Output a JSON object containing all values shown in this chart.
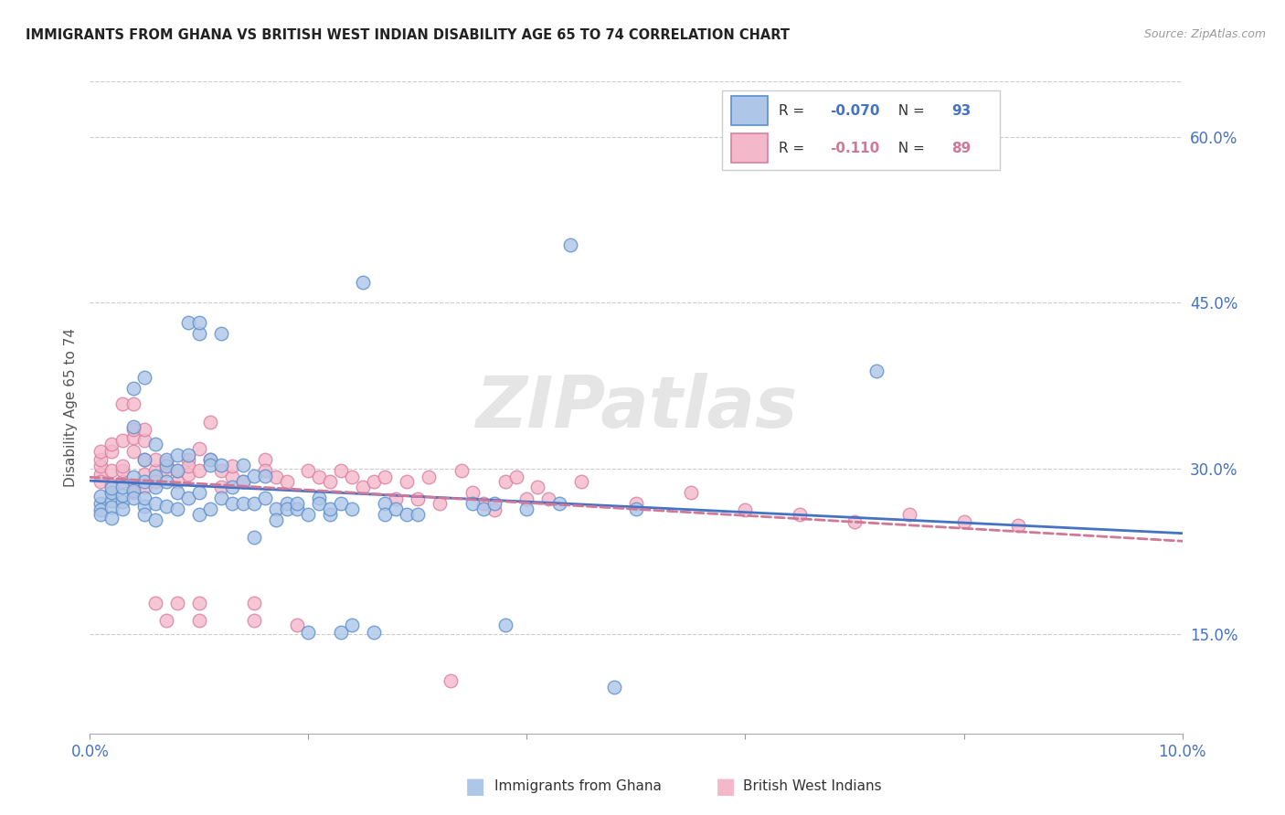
{
  "title": "IMMIGRANTS FROM GHANA VS BRITISH WEST INDIAN DISABILITY AGE 65 TO 74 CORRELATION CHART",
  "source": "Source: ZipAtlas.com",
  "ylabel": "Disability Age 65 to 74",
  "xlim": [
    0.0,
    0.1
  ],
  "ylim": [
    0.06,
    0.65
  ],
  "xtick_positions": [
    0.0,
    0.02,
    0.04,
    0.06,
    0.08,
    0.1
  ],
  "xticklabels": [
    "0.0%",
    "",
    "",
    "",
    "",
    "10.0%"
  ],
  "yticks": [
    0.15,
    0.3,
    0.45,
    0.6
  ],
  "yticklabels": [
    "15.0%",
    "30.0%",
    "45.0%",
    "60.0%"
  ],
  "ghana_R": -0.07,
  "ghana_N": 93,
  "bwi_R": -0.11,
  "bwi_N": 89,
  "ghana_color": "#aec6e8",
  "bwi_color": "#f4b8cb",
  "ghana_edge_color": "#5b8fcc",
  "bwi_edge_color": "#d97fa0",
  "ghana_line_color": "#4472c4",
  "bwi_line_color": "#d07898",
  "watermark": "ZIPatlas",
  "ghana_points": [
    [
      0.001,
      0.268
    ],
    [
      0.001,
      0.275
    ],
    [
      0.001,
      0.262
    ],
    [
      0.001,
      0.258
    ],
    [
      0.002,
      0.271
    ],
    [
      0.002,
      0.265
    ],
    [
      0.002,
      0.278
    ],
    [
      0.002,
      0.255
    ],
    [
      0.002,
      0.282
    ],
    [
      0.003,
      0.27
    ],
    [
      0.003,
      0.276
    ],
    [
      0.003,
      0.283
    ],
    [
      0.003,
      0.263
    ],
    [
      0.004,
      0.28
    ],
    [
      0.004,
      0.273
    ],
    [
      0.004,
      0.292
    ],
    [
      0.004,
      0.338
    ],
    [
      0.004,
      0.372
    ],
    [
      0.005,
      0.266
    ],
    [
      0.005,
      0.288
    ],
    [
      0.005,
      0.308
    ],
    [
      0.005,
      0.273
    ],
    [
      0.005,
      0.258
    ],
    [
      0.005,
      0.382
    ],
    [
      0.006,
      0.322
    ],
    [
      0.006,
      0.268
    ],
    [
      0.006,
      0.283
    ],
    [
      0.006,
      0.293
    ],
    [
      0.006,
      0.253
    ],
    [
      0.007,
      0.302
    ],
    [
      0.007,
      0.308
    ],
    [
      0.007,
      0.266
    ],
    [
      0.007,
      0.288
    ],
    [
      0.008,
      0.312
    ],
    [
      0.008,
      0.298
    ],
    [
      0.008,
      0.263
    ],
    [
      0.008,
      0.278
    ],
    [
      0.009,
      0.312
    ],
    [
      0.009,
      0.273
    ],
    [
      0.009,
      0.432
    ],
    [
      0.01,
      0.422
    ],
    [
      0.01,
      0.432
    ],
    [
      0.01,
      0.278
    ],
    [
      0.01,
      0.258
    ],
    [
      0.011,
      0.308
    ],
    [
      0.011,
      0.303
    ],
    [
      0.011,
      0.263
    ],
    [
      0.012,
      0.422
    ],
    [
      0.012,
      0.303
    ],
    [
      0.012,
      0.273
    ],
    [
      0.013,
      0.283
    ],
    [
      0.013,
      0.268
    ],
    [
      0.014,
      0.303
    ],
    [
      0.014,
      0.288
    ],
    [
      0.014,
      0.268
    ],
    [
      0.015,
      0.293
    ],
    [
      0.015,
      0.268
    ],
    [
      0.015,
      0.238
    ],
    [
      0.016,
      0.293
    ],
    [
      0.016,
      0.273
    ],
    [
      0.017,
      0.263
    ],
    [
      0.017,
      0.253
    ],
    [
      0.018,
      0.268
    ],
    [
      0.018,
      0.263
    ],
    [
      0.019,
      0.263
    ],
    [
      0.019,
      0.268
    ],
    [
      0.02,
      0.152
    ],
    [
      0.02,
      0.258
    ],
    [
      0.021,
      0.273
    ],
    [
      0.021,
      0.268
    ],
    [
      0.022,
      0.258
    ],
    [
      0.022,
      0.263
    ],
    [
      0.023,
      0.268
    ],
    [
      0.023,
      0.152
    ],
    [
      0.024,
      0.158
    ],
    [
      0.024,
      0.263
    ],
    [
      0.025,
      0.468
    ],
    [
      0.026,
      0.152
    ],
    [
      0.027,
      0.268
    ],
    [
      0.027,
      0.258
    ],
    [
      0.028,
      0.263
    ],
    [
      0.029,
      0.258
    ],
    [
      0.03,
      0.258
    ],
    [
      0.035,
      0.268
    ],
    [
      0.036,
      0.263
    ],
    [
      0.037,
      0.268
    ],
    [
      0.038,
      0.158
    ],
    [
      0.04,
      0.263
    ],
    [
      0.043,
      0.268
    ],
    [
      0.044,
      0.502
    ],
    [
      0.048,
      0.102
    ],
    [
      0.05,
      0.263
    ],
    [
      0.072,
      0.388
    ]
  ],
  "bwi_points": [
    [
      0.001,
      0.295
    ],
    [
      0.001,
      0.302
    ],
    [
      0.001,
      0.308
    ],
    [
      0.001,
      0.315
    ],
    [
      0.001,
      0.288
    ],
    [
      0.002,
      0.315
    ],
    [
      0.002,
      0.298
    ],
    [
      0.002,
      0.322
    ],
    [
      0.002,
      0.278
    ],
    [
      0.002,
      0.285
    ],
    [
      0.003,
      0.288
    ],
    [
      0.003,
      0.325
    ],
    [
      0.003,
      0.298
    ],
    [
      0.003,
      0.358
    ],
    [
      0.003,
      0.302
    ],
    [
      0.004,
      0.328
    ],
    [
      0.004,
      0.335
    ],
    [
      0.004,
      0.315
    ],
    [
      0.004,
      0.283
    ],
    [
      0.004,
      0.358
    ],
    [
      0.004,
      0.278
    ],
    [
      0.005,
      0.308
    ],
    [
      0.005,
      0.325
    ],
    [
      0.005,
      0.335
    ],
    [
      0.005,
      0.295
    ],
    [
      0.005,
      0.283
    ],
    [
      0.006,
      0.298
    ],
    [
      0.006,
      0.178
    ],
    [
      0.006,
      0.288
    ],
    [
      0.006,
      0.308
    ],
    [
      0.007,
      0.298
    ],
    [
      0.007,
      0.305
    ],
    [
      0.007,
      0.162
    ],
    [
      0.008,
      0.178
    ],
    [
      0.008,
      0.288
    ],
    [
      0.008,
      0.298
    ],
    [
      0.009,
      0.308
    ],
    [
      0.009,
      0.295
    ],
    [
      0.009,
      0.302
    ],
    [
      0.01,
      0.318
    ],
    [
      0.01,
      0.298
    ],
    [
      0.01,
      0.162
    ],
    [
      0.01,
      0.178
    ],
    [
      0.011,
      0.342
    ],
    [
      0.011,
      0.308
    ],
    [
      0.012,
      0.283
    ],
    [
      0.012,
      0.298
    ],
    [
      0.013,
      0.292
    ],
    [
      0.013,
      0.302
    ],
    [
      0.014,
      0.288
    ],
    [
      0.015,
      0.162
    ],
    [
      0.015,
      0.178
    ],
    [
      0.016,
      0.308
    ],
    [
      0.016,
      0.298
    ],
    [
      0.017,
      0.292
    ],
    [
      0.018,
      0.288
    ],
    [
      0.019,
      0.158
    ],
    [
      0.02,
      0.298
    ],
    [
      0.021,
      0.292
    ],
    [
      0.022,
      0.288
    ],
    [
      0.023,
      0.298
    ],
    [
      0.024,
      0.292
    ],
    [
      0.025,
      0.283
    ],
    [
      0.026,
      0.288
    ],
    [
      0.027,
      0.292
    ],
    [
      0.028,
      0.272
    ],
    [
      0.029,
      0.288
    ],
    [
      0.03,
      0.272
    ],
    [
      0.031,
      0.292
    ],
    [
      0.032,
      0.268
    ],
    [
      0.033,
      0.108
    ],
    [
      0.034,
      0.298
    ],
    [
      0.035,
      0.278
    ],
    [
      0.036,
      0.268
    ],
    [
      0.037,
      0.262
    ],
    [
      0.038,
      0.288
    ],
    [
      0.039,
      0.292
    ],
    [
      0.04,
      0.272
    ],
    [
      0.041,
      0.283
    ],
    [
      0.042,
      0.272
    ],
    [
      0.045,
      0.288
    ],
    [
      0.05,
      0.268
    ],
    [
      0.055,
      0.278
    ],
    [
      0.06,
      0.262
    ],
    [
      0.065,
      0.258
    ],
    [
      0.07,
      0.252
    ],
    [
      0.075,
      0.258
    ],
    [
      0.08,
      0.252
    ],
    [
      0.085,
      0.248
    ]
  ]
}
